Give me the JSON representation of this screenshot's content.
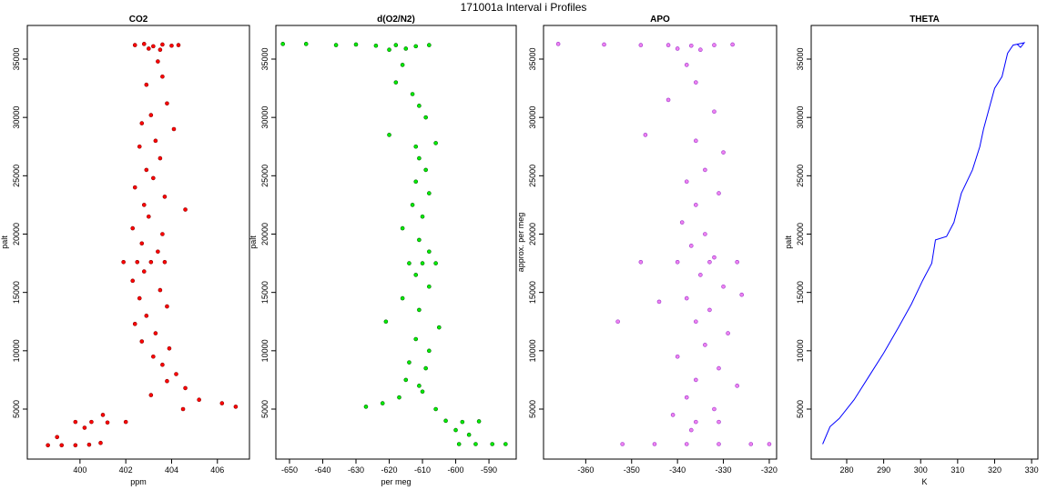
{
  "title": "171001a   Interval i Profiles",
  "chart_data": [
    {
      "type": "scatter",
      "title": "CO2",
      "xlabel": "ppm",
      "ylabel": "palt",
      "color": "#ff0000",
      "x": [
        402.4,
        402.8,
        403.2,
        403.6,
        404.0,
        404.3,
        403.0,
        403.5,
        403.4,
        403.6,
        402.9,
        403.8,
        403.1,
        402.7,
        404.1,
        403.3,
        402.6,
        403.5,
        402.9,
        403.2,
        402.4,
        403.7,
        402.8,
        404.6,
        403.0,
        402.3,
        403.6,
        402.7,
        403.4,
        401.9,
        402.5,
        403.1,
        403.7,
        402.8,
        402.3,
        403.5,
        402.6,
        403.8,
        402.9,
        402.4,
        403.3,
        402.7,
        403.9,
        403.2,
        403.6,
        404.2,
        403.8,
        404.6,
        403.1,
        405.2,
        406.2,
        406.8,
        404.5,
        399.8,
        400.5,
        401.2,
        402.0,
        401.0,
        400.2,
        399.0,
        398.6,
        399.2,
        399.8,
        400.4,
        400.9
      ],
      "y": [
        36200,
        36300,
        36100,
        36250,
        36150,
        36200,
        35900,
        35800,
        34800,
        33500,
        32800,
        31200,
        30200,
        29500,
        29000,
        28000,
        27500,
        26500,
        25500,
        24800,
        24000,
        23200,
        22500,
        22100,
        21500,
        20500,
        20000,
        19200,
        18500,
        17600,
        17600,
        17600,
        17600,
        16800,
        16000,
        15200,
        14500,
        13800,
        13000,
        12300,
        11500,
        10800,
        10200,
        9500,
        8800,
        8000,
        7400,
        6800,
        6200,
        5800,
        5500,
        5200,
        5000,
        3900,
        3900,
        3850,
        3900,
        4500,
        3400,
        2600,
        1900,
        1900,
        1900,
        1950,
        2100
      ],
      "xlim": [
        397.7,
        407.4
      ],
      "ylim": [
        714,
        37883
      ],
      "xticks": [
        400,
        402,
        404,
        406
      ],
      "yticks": [
        5000,
        10000,
        15000,
        20000,
        25000,
        30000,
        35000
      ]
    },
    {
      "type": "scatter",
      "title": "d(O2/N2)",
      "xlabel": "per meg",
      "ylabel": "palt",
      "color": "#00ee00",
      "x": [
        -652,
        -645,
        -636,
        -630,
        -624,
        -618,
        -612,
        -608,
        -620,
        -615,
        -616,
        -618,
        -613,
        -611,
        -609,
        -620,
        -612,
        -606,
        -611,
        -609,
        -612,
        -608,
        -613,
        -610,
        -616,
        -611,
        -608,
        -614,
        -610,
        -606,
        -612,
        -608,
        -616,
        -611,
        -621,
        -605,
        -612,
        -608,
        -614,
        -609,
        -615,
        -611,
        -610,
        -617,
        -622,
        -627,
        -606,
        -603,
        -598,
        -593,
        -600,
        -596,
        -599,
        -594,
        -589,
        -585
      ],
      "y": [
        36300,
        36300,
        36200,
        36250,
        36150,
        36200,
        36100,
        36200,
        35800,
        35900,
        34500,
        33000,
        32000,
        31000,
        30000,
        28500,
        27500,
        27800,
        26500,
        25500,
        24500,
        23500,
        22500,
        21500,
        20500,
        19500,
        18500,
        17500,
        17500,
        17500,
        16500,
        15500,
        14500,
        13500,
        12500,
        12000,
        11000,
        10000,
        9000,
        8500,
        7500,
        7000,
        6500,
        6000,
        5500,
        5200,
        5000,
        4000,
        3900,
        3950,
        3200,
        2800,
        2000,
        2000,
        2000,
        2000
      ],
      "xlim": [
        -654.1,
        -581.8
      ],
      "ylim": [
        714,
        37883
      ],
      "xticks": [
        -650,
        -640,
        -630,
        -620,
        -610,
        -600,
        -590
      ],
      "yticks": [
        5000,
        10000,
        15000,
        20000,
        25000,
        30000,
        35000
      ]
    },
    {
      "type": "scatter",
      "title": "APO",
      "ylabel": "approx. per meg",
      "color": "#ee82ee",
      "x": [
        -366,
        -356,
        -348,
        -342,
        -337,
        -332,
        -328,
        -340,
        -335,
        -338,
        -336,
        -342,
        -332,
        -347,
        -336,
        -330,
        -334,
        -338,
        -331,
        -336,
        -339,
        -334,
        -337,
        -332,
        -348,
        -340,
        -333,
        -327,
        -335,
        -330,
        -338,
        -326,
        -344,
        -333,
        -336,
        -353,
        -329,
        -334,
        -340,
        -331,
        -336,
        -327,
        -338,
        -332,
        -341,
        -336,
        -331,
        -337,
        -352,
        -345,
        -338,
        -331,
        -324,
        -320
      ],
      "y": [
        36300,
        36250,
        36200,
        36200,
        36150,
        36200,
        36250,
        35900,
        35800,
        34500,
        33000,
        31500,
        30500,
        28500,
        28000,
        27000,
        25500,
        24500,
        23500,
        22500,
        21000,
        20000,
        19000,
        18000,
        17600,
        17600,
        17600,
        17600,
        16500,
        15500,
        14500,
        14800,
        14200,
        13500,
        12500,
        12500,
        11500,
        10500,
        9500,
        8500,
        7500,
        7000,
        6000,
        5000,
        4500,
        3900,
        3900,
        3200,
        2000,
        2000,
        2000,
        2000,
        2000,
        2000
      ],
      "xlim": [
        -369.2,
        -318.4
      ],
      "ylim": [
        714,
        37883
      ],
      "xticks": [
        -360,
        -350,
        -340,
        -330,
        -320
      ],
      "yticks": [
        5000,
        10000,
        15000,
        20000,
        25000,
        30000,
        35000
      ]
    },
    {
      "type": "line",
      "title": "THETA",
      "xlabel": "K",
      "ylabel": "palt",
      "color": "#0000ff",
      "x": [
        273.5,
        275.5,
        278,
        282,
        286,
        290,
        294,
        297.5,
        300.5,
        303,
        304,
        307,
        309,
        311,
        314,
        316,
        317,
        320,
        322,
        323.5,
        325,
        328,
        327,
        326
      ],
      "y": [
        2000,
        3500,
        4200,
        5800,
        7800,
        9800,
        12000,
        14000,
        16000,
        17500,
        19500,
        19800,
        21000,
        23500,
        25500,
        27500,
        29000,
        32500,
        33500,
        35500,
        36200,
        36400,
        36000,
        36300
      ],
      "xlim": [
        270.4,
        331.7
      ],
      "ylim": [
        714,
        37883
      ],
      "xticks": [
        280,
        290,
        300,
        310,
        320,
        330
      ],
      "yticks": [
        5000,
        10000,
        15000,
        20000,
        25000,
        30000,
        35000
      ]
    }
  ]
}
